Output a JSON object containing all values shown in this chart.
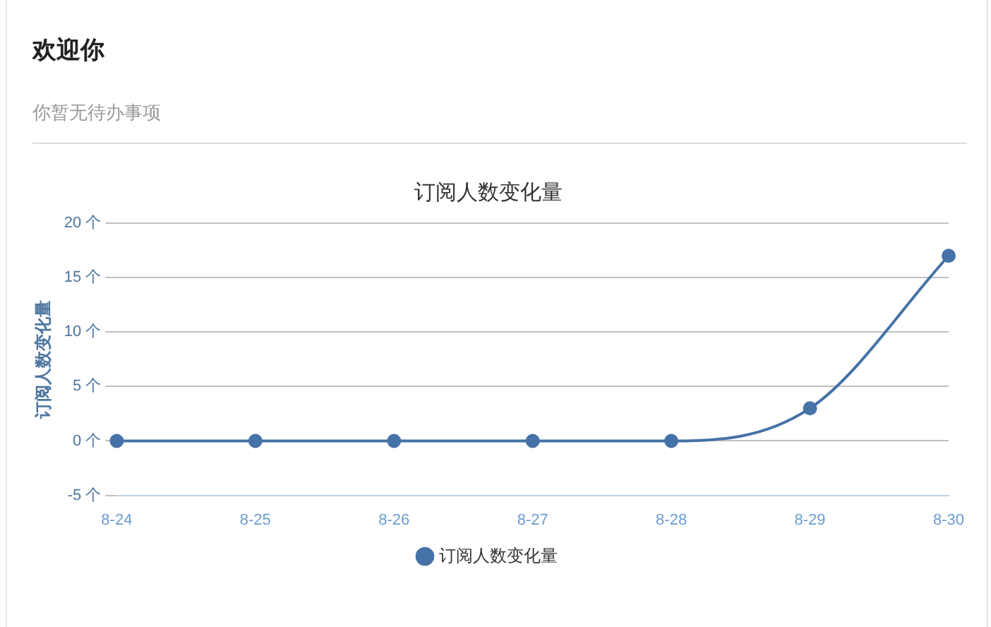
{
  "chart_data": {
    "type": "line",
    "title": "订阅人数变化量",
    "ylabel": "订阅人数变化量",
    "annotations": [
      "欢迎你",
      "你暂无待办事项"
    ],
    "categories": [
      "8-24",
      "8-25",
      "8-26",
      "8-27",
      "8-28",
      "8-29",
      "8-30"
    ],
    "series": [
      {
        "name": "订阅人数变化量",
        "color": "#4572a7",
        "values": [
          0,
          0,
          0,
          0,
          0,
          3,
          17
        ]
      }
    ],
    "ylim": [
      -5,
      20
    ],
    "yticks": [
      {
        "value": -5,
        "label": "-5 个"
      },
      {
        "value": 0,
        "label": "0 个"
      },
      {
        "value": 5,
        "label": "5 个"
      },
      {
        "value": 10,
        "label": "10 个"
      },
      {
        "value": 15,
        "label": "15 个"
      },
      {
        "value": 20,
        "label": "20 个"
      }
    ],
    "grid": "y",
    "legend": "bottom",
    "marker": "circle",
    "line_style": "solid"
  }
}
